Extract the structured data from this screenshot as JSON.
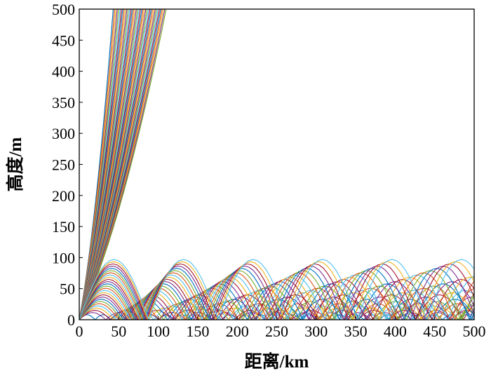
{
  "chart_data": {
    "type": "line",
    "title": "",
    "xlabel": "距离/km",
    "ylabel": "高度/m",
    "xlim": [
      0,
      500
    ],
    "ylim": [
      0,
      500
    ],
    "xticks": [
      0,
      50,
      100,
      150,
      200,
      250,
      300,
      350,
      400,
      450,
      500
    ],
    "yticks": [
      0,
      50,
      100,
      150,
      200,
      250,
      300,
      350,
      400,
      450,
      500
    ],
    "grid": false,
    "legend": "none",
    "series_summary": "Ray traces from a source near 0 m altitude: steep rays escape upward past 500 m before x≈110 km; trapped rays hop along the surface with arch peaks up to about 95 m, repeating roughly every 87 km to 500 km.",
    "escaping_rays": {
      "count": 40,
      "exit_range_km": [
        43,
        110
      ],
      "exit_height_m": 500
    },
    "trapped_rays": {
      "count": 26,
      "max_height_m": [
        8,
        97
      ],
      "hop_span_km": [
        20,
        88
      ]
    },
    "colors": [
      "#0072BD",
      "#D95319",
      "#EDB120",
      "#7E2F8E",
      "#77AC30",
      "#4DBEEE",
      "#A2142F"
    ]
  }
}
